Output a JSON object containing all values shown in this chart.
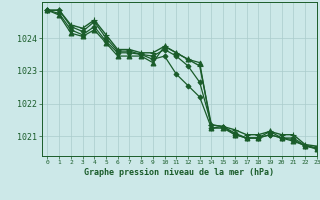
{
  "title": "Graphe pression niveau de la mer (hPa)",
  "background_color": "#cce8e8",
  "grid_color": "#aacccc",
  "line_color": "#1a5c2a",
  "marker_color": "#1a5c2a",
  "xlim": [
    -0.5,
    23
  ],
  "ylim": [
    1020.4,
    1025.1
  ],
  "yticks": [
    1021,
    1022,
    1023,
    1024
  ],
  "xticks": [
    0,
    1,
    2,
    3,
    4,
    5,
    6,
    7,
    8,
    9,
    10,
    11,
    12,
    13,
    14,
    15,
    16,
    17,
    18,
    19,
    20,
    21,
    22,
    23
  ],
  "series": [
    {
      "x": [
        0,
        1,
        2,
        3,
        4,
        5,
        6,
        7,
        8,
        9,
        10,
        11,
        12,
        13,
        14,
        15,
        16,
        17,
        18,
        19,
        20,
        21,
        22,
        23
      ],
      "y": [
        1024.85,
        1024.85,
        1024.4,
        1024.3,
        1024.55,
        1024.1,
        1023.65,
        1023.65,
        1023.55,
        1023.55,
        1023.75,
        1023.55,
        1023.35,
        1023.15,
        1021.35,
        1021.3,
        1021.2,
        1021.05,
        1021.05,
        1021.15,
        1021.05,
        1021.05,
        1020.75,
        1020.7
      ],
      "marker": "+",
      "markersize": 4,
      "linewidth": 1.0
    },
    {
      "x": [
        0,
        1,
        2,
        3,
        4,
        5,
        6,
        7,
        8,
        9,
        10,
        11,
        12,
        13,
        14,
        15,
        16,
        17,
        18,
        19,
        20,
        21,
        22,
        23
      ],
      "y": [
        1024.85,
        1024.85,
        1024.35,
        1024.2,
        1024.5,
        1024.0,
        1023.6,
        1023.6,
        1023.5,
        1023.45,
        1023.65,
        1023.45,
        1023.15,
        1022.65,
        1021.35,
        1021.3,
        1021.1,
        1020.95,
        1020.95,
        1021.05,
        1020.95,
        1020.95,
        1020.72,
        1020.65
      ],
      "marker": "D",
      "markersize": 2.5,
      "linewidth": 0.9
    },
    {
      "x": [
        0,
        1,
        2,
        3,
        4,
        5,
        6,
        7,
        8,
        9,
        10,
        11,
        12,
        13,
        14,
        15,
        16,
        17,
        18,
        19,
        20,
        21,
        22,
        23
      ],
      "y": [
        1024.85,
        1024.75,
        1024.25,
        1024.1,
        1024.35,
        1023.9,
        1023.55,
        1023.55,
        1023.5,
        1023.35,
        1023.45,
        1022.9,
        1022.55,
        1022.2,
        1021.25,
        1021.3,
        1021.05,
        1020.95,
        1020.95,
        1021.05,
        1020.95,
        1020.9,
        1020.7,
        1020.62
      ],
      "marker": "D",
      "markersize": 2.5,
      "linewidth": 0.9
    },
    {
      "x": [
        0,
        1,
        2,
        3,
        4,
        5,
        6,
        7,
        8,
        9,
        10,
        11,
        12,
        13,
        14,
        15,
        16,
        17,
        18,
        19,
        20,
        21,
        22,
        23
      ],
      "y": [
        1024.85,
        1024.7,
        1024.15,
        1024.05,
        1024.25,
        1023.85,
        1023.45,
        1023.45,
        1023.45,
        1023.25,
        1023.75,
        1023.55,
        1023.35,
        1023.25,
        1021.25,
        1021.25,
        1021.05,
        1020.95,
        1020.95,
        1021.15,
        1020.95,
        1020.85,
        1020.72,
        1020.62
      ],
      "marker": "^",
      "markersize": 3.5,
      "linewidth": 0.9
    }
  ]
}
